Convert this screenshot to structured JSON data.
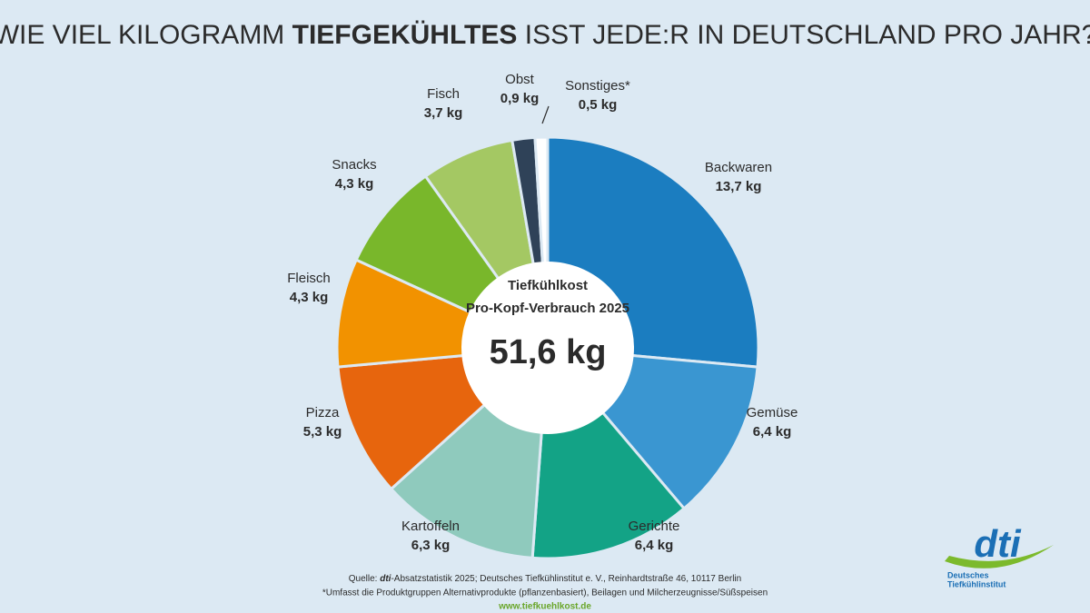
{
  "chart_data": {
    "type": "donut",
    "title_parts": [
      "WIE VIEL KILOGRAMM ",
      "TIEFGEKÜHLTES",
      " ISST JEDE:R IN DEUTSCHLAND PRO JAHR?"
    ],
    "categories": [
      "Backwaren",
      "Gemüse",
      "Gerichte",
      "Kartoffeln",
      "Pizza",
      "Fleisch",
      "Snacks",
      "Fisch",
      "Obst",
      "Sonstiges*"
    ],
    "values": [
      13.7,
      6.4,
      6.4,
      6.3,
      5.3,
      4.3,
      4.3,
      3.7,
      0.9,
      0.5
    ],
    "value_labels": [
      "13,7 kg",
      "6,4 kg",
      "6,4 kg",
      "6,3 kg",
      "5,3 kg",
      "4,3 kg",
      "4,3 kg",
      "3,7 kg",
      "0,9 kg",
      "0,5 kg"
    ],
    "colors": [
      "#1b7dc0",
      "#3a96d1",
      "#13a386",
      "#8fcabd",
      "#e7650d",
      "#f29200",
      "#79b72b",
      "#a4c863",
      "#2f4258",
      "#ffffff"
    ],
    "center_label": [
      "Tiefkühlkost",
      "Pro-Kopf-Verbrauch 2025"
    ],
    "center_value": "51,6 kg"
  },
  "footer": {
    "source_parts": [
      "Quelle: ",
      "dti",
      "-Absatzstatistik 2025; Deutsches Tiefkühlinstitut e. V., Reinhardtstraße 46, 10117 Berlin"
    ],
    "note": "*Umfasst die Produktgruppen Alternativprodukte (pflanzenbasiert), Beilagen und Milcherzeugnisse/Süßspeisen",
    "url": "www.tiefkuehlkost.de"
  },
  "logo": {
    "mark": "dti",
    "line1": "Deutsches",
    "line2": "Tiefkühlinstitut"
  }
}
